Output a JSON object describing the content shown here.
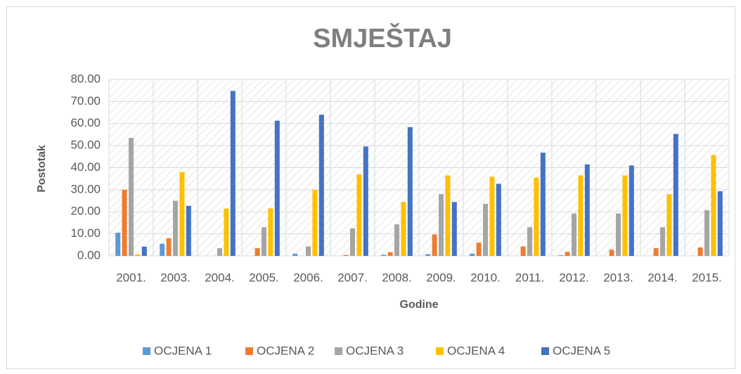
{
  "chart_data": {
    "type": "bar",
    "title": "SMJEŠTAJ",
    "x_label": "Godine",
    "y_label": "Postotak",
    "categories": [
      "2001.",
      "2003.",
      "2004.",
      "2005.",
      "2006.",
      "2007.",
      "2008.",
      "2009.",
      "2010.",
      "2011.",
      "2012.",
      "2013.",
      "2014.",
      "2015."
    ],
    "series": [
      {
        "name": "OCJENA 1",
        "color": "#5b9bd5",
        "values": [
          10.5,
          5.5,
          0,
          0,
          1,
          0,
          0.5,
          0.8,
          1,
          0,
          0.3,
          0,
          0,
          0
        ]
      },
      {
        "name": "OCJENA 2",
        "color": "#ed7d31",
        "values": [
          30,
          8,
          0,
          3.5,
          0,
          0.4,
          1.7,
          9.7,
          6,
          4.3,
          1.8,
          2.8,
          3.5,
          3.8
        ]
      },
      {
        "name": "OCJENA 3",
        "color": "#a5a5a5",
        "values": [
          53.5,
          25,
          3.5,
          13,
          4.3,
          12.5,
          14.3,
          28,
          23.6,
          13,
          19.2,
          19.2,
          13,
          20.7
        ]
      },
      {
        "name": "OCJENA 4",
        "color": "#ffc000",
        "values": [
          0.7,
          38,
          21.5,
          21.5,
          30,
          37,
          24.5,
          36.5,
          35.9,
          35.5,
          36.5,
          36.5,
          28,
          45.7
        ]
      },
      {
        "name": "OCJENA 5",
        "color": "#4472c4",
        "values": [
          4.2,
          22.7,
          74.8,
          61.3,
          64,
          49.6,
          58.4,
          24.4,
          32.7,
          46.8,
          41.5,
          41,
          55.3,
          29.3
        ]
      }
    ],
    "ylim": [
      0,
      80
    ],
    "yticks": [
      {
        "value": 0,
        "label": "0.00"
      },
      {
        "value": 10,
        "label": "10.00"
      },
      {
        "value": 20,
        "label": "20.00"
      },
      {
        "value": 30,
        "label": "30.00"
      },
      {
        "value": 40,
        "label": "40.00"
      },
      {
        "value": 50,
        "label": "50.00"
      },
      {
        "value": 60,
        "label": "60.00"
      },
      {
        "value": 70,
        "label": "70.00"
      },
      {
        "value": 80,
        "label": "80.00"
      }
    ],
    "grid": true,
    "legend": "bottom"
  }
}
